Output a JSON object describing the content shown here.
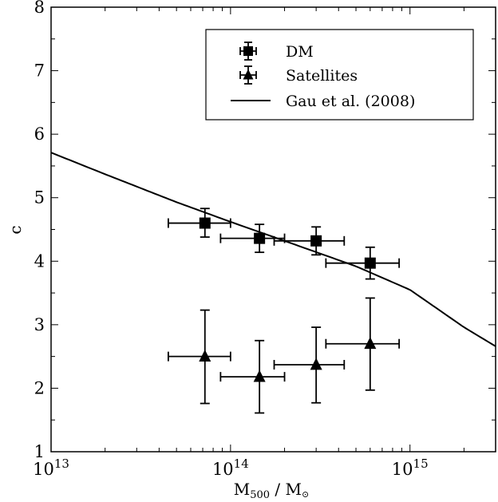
{
  "chart_data": {
    "type": "scatter",
    "xscale": "log",
    "xlim": [
      10000000000000.0,
      3000000000000000.0
    ],
    "ylim": [
      1,
      8
    ],
    "xlabel": "M_500 / M_⊙",
    "ylabel": "c",
    "x_tick_labels": [
      {
        "value": 10000000000000.0,
        "base": "10",
        "exp": "13"
      },
      {
        "value": 100000000000000.0,
        "base": "10",
        "exp": "14"
      },
      {
        "value": 1000000000000000.0,
        "base": "10",
        "exp": "15"
      }
    ],
    "y_ticks": [
      1,
      2,
      3,
      4,
      5,
      6,
      7,
      8
    ],
    "grid": false,
    "legend": {
      "placement": "top-right",
      "entries": [
        "DM",
        "Satellites",
        "Gau et al. (2008)"
      ]
    },
    "series": [
      {
        "name": "DM",
        "marker": "square",
        "points": [
          {
            "x": 72000000000000.0,
            "y": 4.6,
            "xlo": 45000000000000.0,
            "xhi": 100000000000000.0,
            "ylo": 4.38,
            "yhi": 4.83
          },
          {
            "x": 145000000000000.0,
            "y": 4.36,
            "xlo": 88000000000000.0,
            "xhi": 200000000000000.0,
            "ylo": 4.14,
            "yhi": 4.58
          },
          {
            "x": 300000000000000.0,
            "y": 4.32,
            "xlo": 175000000000000.0,
            "xhi": 430000000000000.0,
            "ylo": 4.1,
            "yhi": 4.54
          },
          {
            "x": 600000000000000.0,
            "y": 3.97,
            "xlo": 340000000000000.0,
            "xhi": 870000000000000.0,
            "ylo": 3.72,
            "yhi": 4.22
          }
        ]
      },
      {
        "name": "Satellites",
        "marker": "triangle",
        "points": [
          {
            "x": 72000000000000.0,
            "y": 2.5,
            "xlo": 45000000000000.0,
            "xhi": 100000000000000.0,
            "ylo": 1.76,
            "yhi": 3.23
          },
          {
            "x": 145000000000000.0,
            "y": 2.18,
            "xlo": 88000000000000.0,
            "xhi": 200000000000000.0,
            "ylo": 1.61,
            "yhi": 2.75
          },
          {
            "x": 300000000000000.0,
            "y": 2.37,
            "xlo": 175000000000000.0,
            "xhi": 430000000000000.0,
            "ylo": 1.77,
            "yhi": 2.96
          },
          {
            "x": 600000000000000.0,
            "y": 2.7,
            "xlo": 340000000000000.0,
            "xhi": 870000000000000.0,
            "ylo": 1.97,
            "yhi": 3.42
          }
        ]
      },
      {
        "name": "Gau et al. (2008)",
        "type": "line",
        "x": [
          10000000000000.0,
          20000000000000.0,
          50000000000000.0,
          100000000000000.0,
          200000000000000.0,
          500000000000000.0,
          1000000000000000.0,
          2000000000000000.0,
          3000000000000000.0
        ],
        "y": [
          5.71,
          5.37,
          4.93,
          4.62,
          4.32,
          3.92,
          3.55,
          2.96,
          2.66
        ]
      }
    ]
  }
}
